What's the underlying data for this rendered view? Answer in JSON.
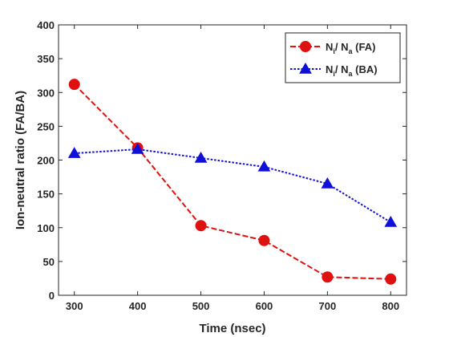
{
  "chart_data": {
    "type": "line",
    "title": "",
    "xlabel": "Time (nsec)",
    "ylabel": "Ion-neutral ratio (FA/BA)",
    "x": [
      300,
      400,
      500,
      600,
      700,
      800
    ],
    "xlim": [
      275,
      825
    ],
    "ylim": [
      0,
      400
    ],
    "xticks": [
      300,
      400,
      500,
      600,
      700,
      800
    ],
    "yticks": [
      0,
      50,
      100,
      150,
      200,
      250,
      300,
      350,
      400
    ],
    "grid": false,
    "legend_position": "top-right",
    "series": [
      {
        "label_main": "N",
        "label_sub_1": "i",
        "label_sep": "/ N",
        "label_sub_2": "a",
        "label_tail": " (FA)",
        "color": "#e01010",
        "marker": "circle",
        "line_style": "dashed",
        "values": [
          312,
          218,
          103,
          81,
          27,
          24
        ]
      },
      {
        "label_main": "N",
        "label_sub_1": "i",
        "label_sep": "/ N",
        "label_sub_2": "a",
        "label_tail": " (BA)",
        "color": "#1010d8",
        "marker": "triangle",
        "line_style": "dotted",
        "values": [
          210,
          216,
          203,
          190,
          165,
          108
        ]
      }
    ]
  }
}
